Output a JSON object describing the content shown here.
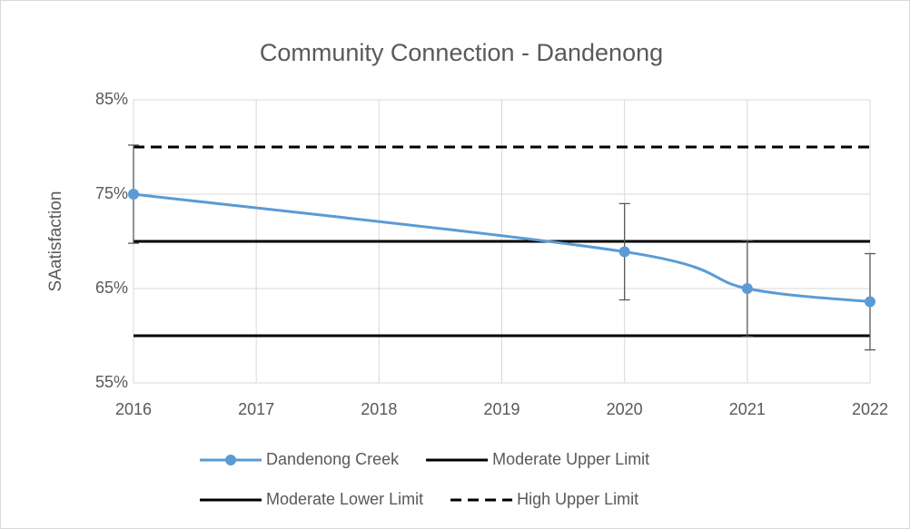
{
  "chart_data": {
    "type": "line",
    "title": "Community Connection - Dandenong",
    "ylabel": "SAatisfaction",
    "xlim": [
      2016,
      2022
    ],
    "xticks": [
      2016,
      2017,
      2018,
      2019,
      2020,
      2021,
      2022
    ],
    "ylim": [
      55,
      85
    ],
    "yticks": [
      {
        "value": 55,
        "label": "55%"
      },
      {
        "value": 65,
        "label": "65%"
      },
      {
        "value": 75,
        "label": "75%"
      },
      {
        "value": 85,
        "label": "85%"
      }
    ],
    "grid": true,
    "legend": "bottom",
    "series": [
      {
        "name": "Dandenong Creek",
        "color": "#5b9bd5",
        "x": [
          2016,
          2020,
          2021,
          2022
        ],
        "values": [
          75,
          68.9,
          65,
          63.6
        ],
        "errors": [
          5.2,
          5.1,
          5.1,
          5.1
        ],
        "smooth": true,
        "marker": true,
        "dash": "solid"
      },
      {
        "name": "Moderate Upper Limit",
        "color": "#000000",
        "x": [
          2016,
          2022
        ],
        "values": [
          70,
          70
        ],
        "dash": "solid"
      },
      {
        "name": "Moderate Lower Limit",
        "color": "#000000",
        "x": [
          2016,
          2022
        ],
        "values": [
          60,
          60
        ],
        "dash": "solid"
      },
      {
        "name": "High Upper Limit",
        "color": "#000000",
        "x": [
          2016,
          2022
        ],
        "values": [
          80,
          80
        ],
        "dash": "dashed"
      }
    ]
  }
}
